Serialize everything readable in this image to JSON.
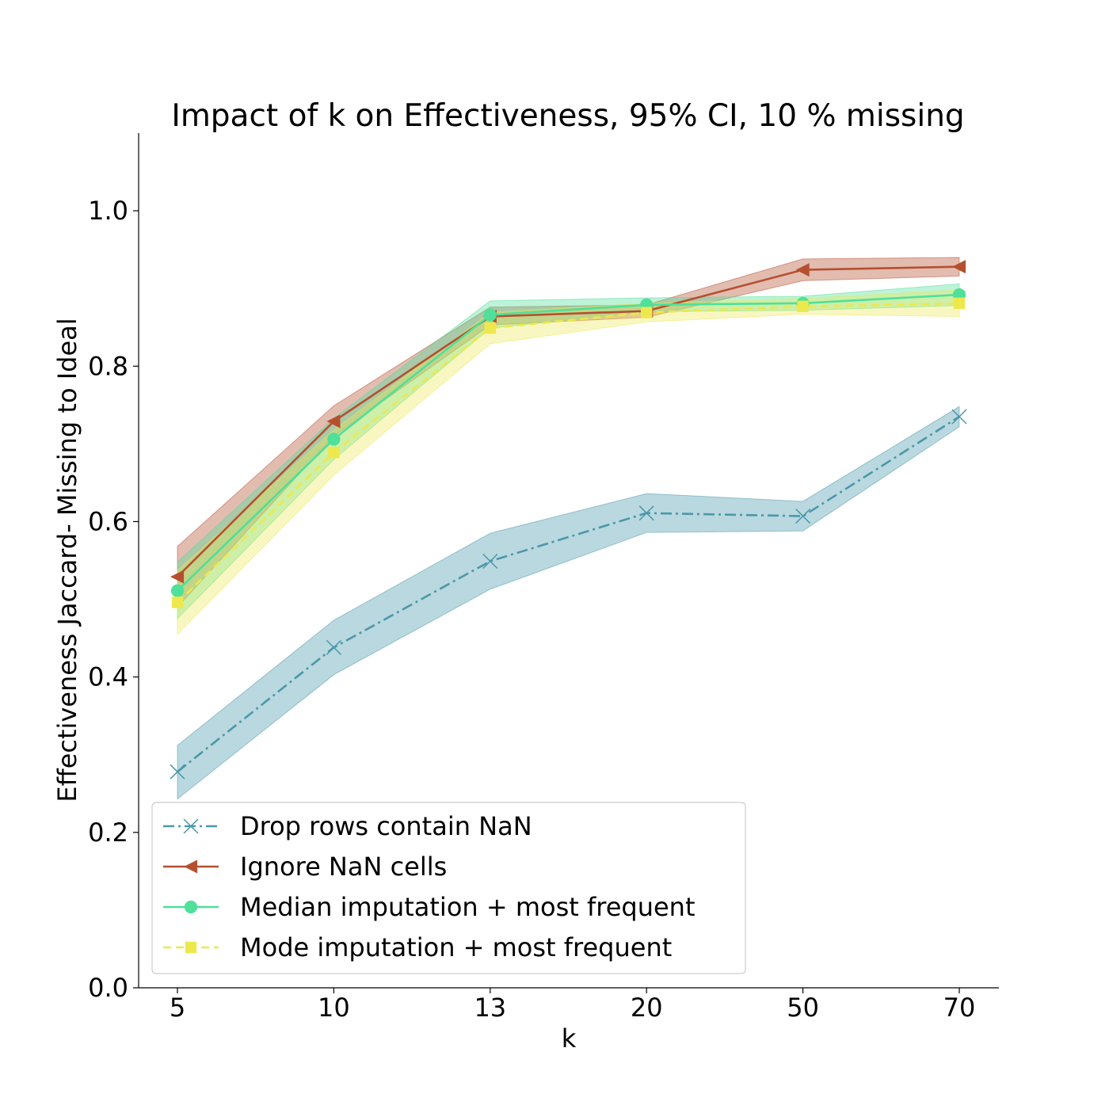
{
  "chart_data": {
    "type": "line",
    "title": "Impact of k on Effectiveness, 95% CI, 10 % missing",
    "xlabel": "k",
    "ylabel": "Effectiveness Jaccard- Missing to Ideal",
    "categories": [
      "5",
      "10",
      "13",
      "20",
      "50",
      "70"
    ],
    "ylim": [
      0,
      1.1
    ],
    "yticks": [
      "0.0",
      "0.2",
      "0.4",
      "0.6",
      "0.8",
      "1.0"
    ],
    "grid": false,
    "legend_position": "lower-left",
    "series": [
      {
        "name": "Drop rows contain NaN",
        "color": "#4a98aa",
        "style": "dashdot",
        "marker": "x",
        "values": [
          0.278,
          0.438,
          0.549,
          0.611,
          0.607,
          0.735
        ],
        "ci_low": [
          0.243,
          0.403,
          0.513,
          0.586,
          0.588,
          0.722
        ],
        "ci_high": [
          0.312,
          0.473,
          0.585,
          0.636,
          0.626,
          0.748
        ]
      },
      {
        "name": "Ignore NaN cells",
        "color": "#b5502f",
        "style": "solid",
        "marker": "triangle-left",
        "values": [
          0.529,
          0.729,
          0.864,
          0.871,
          0.924,
          0.928
        ],
        "ci_low": [
          0.49,
          0.71,
          0.853,
          0.863,
          0.91,
          0.916
        ],
        "ci_high": [
          0.568,
          0.749,
          0.876,
          0.879,
          0.938,
          0.94
        ]
      },
      {
        "name": "Median imputation + most frequent",
        "color": "#4fe09a",
        "style": "solid",
        "marker": "circle",
        "values": [
          0.511,
          0.706,
          0.866,
          0.879,
          0.881,
          0.892
        ],
        "ci_low": [
          0.475,
          0.68,
          0.849,
          0.87,
          0.872,
          0.878
        ],
        "ci_high": [
          0.548,
          0.733,
          0.884,
          0.888,
          0.89,
          0.906
        ]
      },
      {
        "name": "Mode imputation + most frequent",
        "color": "#ede84d",
        "style": "dashed",
        "marker": "square",
        "values": [
          0.496,
          0.689,
          0.849,
          0.869,
          0.877,
          0.881
        ],
        "ci_low": [
          0.455,
          0.66,
          0.829,
          0.857,
          0.867,
          0.864
        ],
        "ci_high": [
          0.537,
          0.718,
          0.869,
          0.881,
          0.887,
          0.898
        ]
      }
    ]
  }
}
